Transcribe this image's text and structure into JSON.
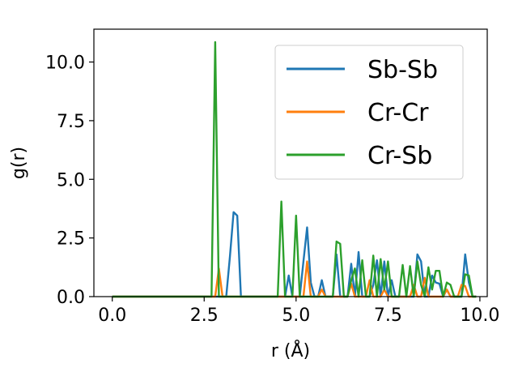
{
  "chart_data": {
    "type": "line",
    "xlabel": "r (Å)",
    "ylabel": "g(r)",
    "xlim": [
      -0.5,
      10.2
    ],
    "ylim": [
      0,
      11.4
    ],
    "xticks": [
      0.0,
      2.5,
      5.0,
      7.5,
      10.0
    ],
    "xtick_labels": [
      "0.0",
      "2.5",
      "5.0",
      "7.5",
      "10.0"
    ],
    "yticks": [
      0.0,
      2.5,
      5.0,
      7.5,
      10.0
    ],
    "ytick_labels": [
      "0.0",
      "2.5",
      "5.0",
      "7.5",
      "10.0"
    ],
    "grid": false,
    "legend_position": "upper right",
    "series": [
      {
        "name": "Sb-Sb",
        "color": "#1f77b4",
        "points": [
          [
            0.0,
            0.0
          ],
          [
            2.7,
            0.0
          ],
          [
            2.8,
            0.0
          ],
          [
            2.9,
            0.0
          ],
          [
            3.0,
            0.0
          ],
          [
            3.1,
            0.0
          ],
          [
            3.2,
            1.7
          ],
          [
            3.3,
            3.6
          ],
          [
            3.4,
            3.45
          ],
          [
            3.5,
            0.0
          ],
          [
            4.6,
            0.0
          ],
          [
            4.7,
            0.0
          ],
          [
            4.8,
            0.9
          ],
          [
            4.9,
            0.0
          ],
          [
            5.0,
            0.0
          ],
          [
            5.1,
            0.0
          ],
          [
            5.2,
            1.5
          ],
          [
            5.3,
            2.95
          ],
          [
            5.4,
            0.6
          ],
          [
            5.5,
            0.0
          ],
          [
            5.6,
            0.0
          ],
          [
            5.7,
            0.7
          ],
          [
            5.8,
            0.0
          ],
          [
            6.0,
            0.0
          ],
          [
            6.1,
            1.8
          ],
          [
            6.2,
            0.0
          ],
          [
            6.3,
            0.0
          ],
          [
            6.4,
            0.0
          ],
          [
            6.5,
            1.4
          ],
          [
            6.6,
            0.0
          ],
          [
            6.7,
            1.9
          ],
          [
            6.8,
            0.0
          ],
          [
            6.9,
            0.0
          ],
          [
            7.0,
            0.0
          ],
          [
            7.1,
            0.5
          ],
          [
            7.2,
            1.55
          ],
          [
            7.3,
            0.0
          ],
          [
            7.4,
            1.5
          ],
          [
            7.5,
            0.0
          ],
          [
            7.6,
            0.7
          ],
          [
            7.7,
            0.0
          ],
          [
            7.8,
            0.0
          ],
          [
            7.9,
            0.0
          ],
          [
            8.0,
            0.0
          ],
          [
            8.1,
            0.0
          ],
          [
            8.2,
            0.0
          ],
          [
            8.3,
            1.8
          ],
          [
            8.4,
            1.5
          ],
          [
            8.5,
            0.0
          ],
          [
            8.6,
            0.0
          ],
          [
            8.7,
            0.9
          ],
          [
            8.8,
            0.6
          ],
          [
            8.9,
            0.55
          ],
          [
            9.0,
            0.0
          ],
          [
            9.1,
            0.3
          ],
          [
            9.2,
            0.0
          ],
          [
            9.3,
            0.0
          ],
          [
            9.4,
            0.0
          ],
          [
            9.5,
            0.0
          ],
          [
            9.6,
            1.8
          ],
          [
            9.7,
            0.6
          ],
          [
            9.8,
            0.0
          ],
          [
            9.9,
            0.0
          ]
        ]
      },
      {
        "name": "Cr-Cr",
        "color": "#ff7f0e",
        "points": [
          [
            0.0,
            0.0
          ],
          [
            2.7,
            0.0
          ],
          [
            2.8,
            0.0
          ],
          [
            2.9,
            1.2
          ],
          [
            3.0,
            0.0
          ],
          [
            4.8,
            0.0
          ],
          [
            4.9,
            0.0
          ],
          [
            5.0,
            0.0
          ],
          [
            5.1,
            0.0
          ],
          [
            5.2,
            0.0
          ],
          [
            5.3,
            1.5
          ],
          [
            5.4,
            0.0
          ],
          [
            5.6,
            0.0
          ],
          [
            5.7,
            0.3
          ],
          [
            5.8,
            0.0
          ],
          [
            6.0,
            0.0
          ],
          [
            6.1,
            0.0
          ],
          [
            6.2,
            0.0
          ],
          [
            6.3,
            0.0
          ],
          [
            6.4,
            0.0
          ],
          [
            6.5,
            0.55
          ],
          [
            6.6,
            0.0
          ],
          [
            6.9,
            0.0
          ],
          [
            7.0,
            0.7
          ],
          [
            7.1,
            0.0
          ],
          [
            7.2,
            0.0
          ],
          [
            7.3,
            0.0
          ],
          [
            7.4,
            0.3
          ],
          [
            7.5,
            0.0
          ],
          [
            8.1,
            0.0
          ],
          [
            8.2,
            0.5
          ],
          [
            8.3,
            0.0
          ],
          [
            8.4,
            0.0
          ],
          [
            8.5,
            0.8
          ],
          [
            8.6,
            0.0
          ],
          [
            8.7,
            0.0
          ],
          [
            8.8,
            0.0
          ],
          [
            9.0,
            0.0
          ],
          [
            9.1,
            0.3
          ],
          [
            9.2,
            0.0
          ],
          [
            9.4,
            0.0
          ],
          [
            9.5,
            0.5
          ],
          [
            9.6,
            0.45
          ],
          [
            9.7,
            0.0
          ],
          [
            9.9,
            0.0
          ]
        ]
      },
      {
        "name": "Cr-Sb",
        "color": "#2ca02c",
        "points": [
          [
            0.0,
            0.0
          ],
          [
            2.6,
            0.0
          ],
          [
            2.7,
            0.0
          ],
          [
            2.8,
            10.85
          ],
          [
            2.9,
            0.0
          ],
          [
            3.0,
            0.0
          ],
          [
            4.4,
            0.0
          ],
          [
            4.5,
            0.0
          ],
          [
            4.6,
            4.05
          ],
          [
            4.7,
            0.0
          ],
          [
            4.8,
            0.0
          ],
          [
            4.9,
            0.0
          ],
          [
            5.0,
            3.45
          ],
          [
            5.1,
            0.0
          ],
          [
            5.2,
            0.0
          ],
          [
            5.3,
            0.0
          ],
          [
            5.4,
            0.0
          ],
          [
            5.5,
            0.0
          ],
          [
            5.6,
            0.0
          ],
          [
            5.7,
            0.0
          ],
          [
            5.8,
            0.0
          ],
          [
            5.9,
            0.0
          ],
          [
            6.0,
            0.0
          ],
          [
            6.1,
            2.35
          ],
          [
            6.2,
            2.25
          ],
          [
            6.3,
            0.0
          ],
          [
            6.4,
            0.0
          ],
          [
            6.5,
            0.7
          ],
          [
            6.6,
            1.2
          ],
          [
            6.7,
            0.0
          ],
          [
            6.8,
            1.55
          ],
          [
            6.9,
            0.0
          ],
          [
            7.0,
            0.0
          ],
          [
            7.1,
            1.75
          ],
          [
            7.2,
            0.0
          ],
          [
            7.3,
            1.6
          ],
          [
            7.4,
            0.3
          ],
          [
            7.5,
            1.5
          ],
          [
            7.6,
            0.0
          ],
          [
            7.7,
            0.0
          ],
          [
            7.8,
            0.0
          ],
          [
            7.9,
            1.35
          ],
          [
            8.0,
            0.0
          ],
          [
            8.1,
            1.3
          ],
          [
            8.2,
            0.0
          ],
          [
            8.3,
            1.5
          ],
          [
            8.4,
            0.5
          ],
          [
            8.5,
            0.0
          ],
          [
            8.6,
            1.25
          ],
          [
            8.7,
            0.3
          ],
          [
            8.8,
            1.1
          ],
          [
            8.9,
            1.1
          ],
          [
            9.0,
            0.0
          ],
          [
            9.1,
            0.6
          ],
          [
            9.2,
            0.5
          ],
          [
            9.3,
            0.0
          ],
          [
            9.4,
            0.0
          ],
          [
            9.5,
            0.0
          ],
          [
            9.6,
            0.95
          ],
          [
            9.7,
            0.9
          ],
          [
            9.8,
            0.0
          ],
          [
            9.9,
            0.0
          ]
        ]
      }
    ]
  }
}
